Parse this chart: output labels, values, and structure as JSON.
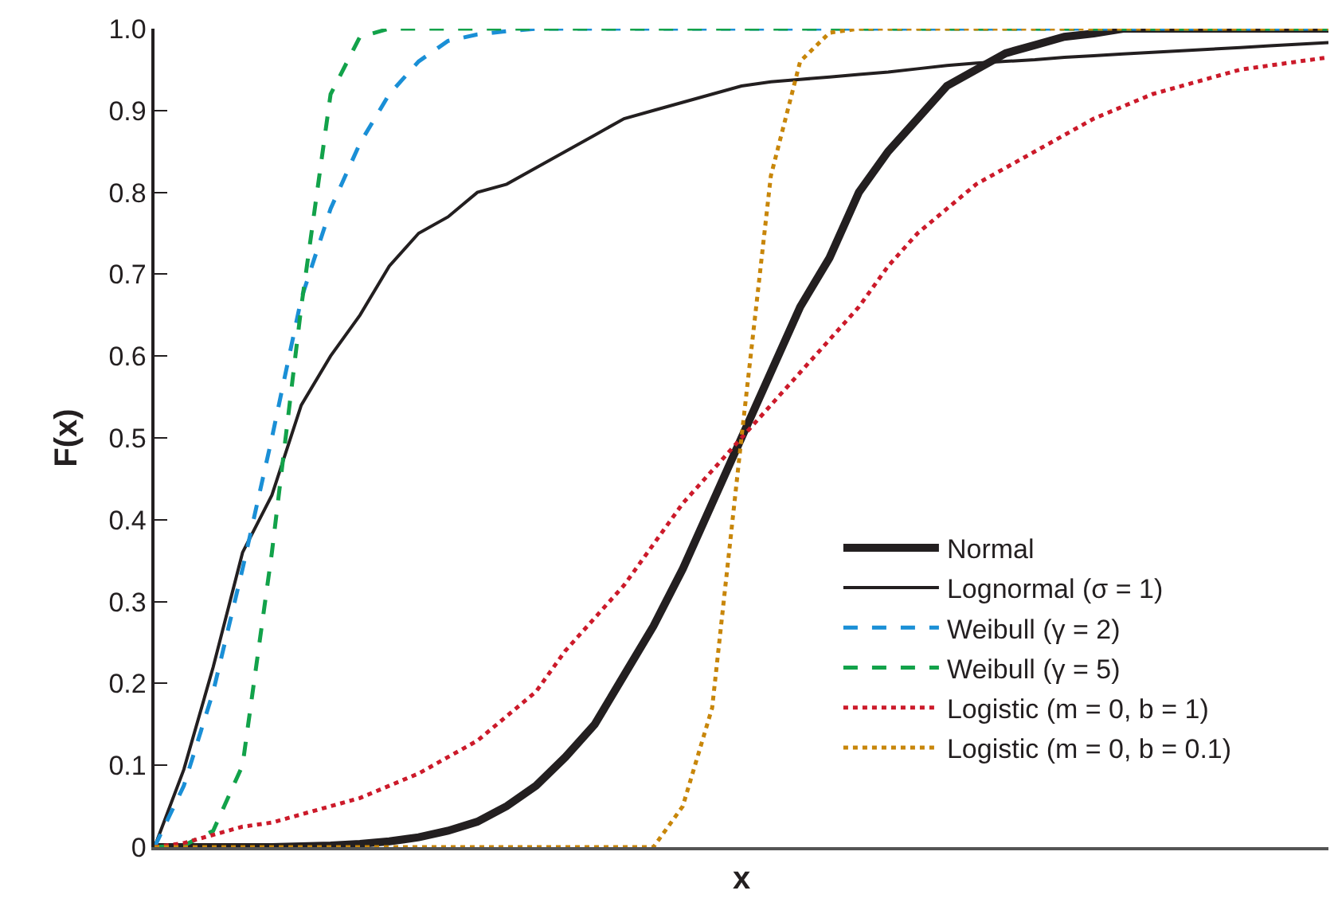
{
  "chart_data": {
    "type": "line",
    "xlabel": "x",
    "ylabel": "F(x)",
    "categories": [
      null,
      null,
      null,
      null,
      null,
      null,
      null,
      null,
      null,
      null,
      null,
      null,
      null,
      null,
      null,
      null,
      null,
      null,
      null,
      null,
      null,
      null,
      null,
      null,
      null,
      null,
      null,
      null,
      null,
      null,
      null,
      null,
      null,
      null,
      null,
      null,
      null,
      null,
      null,
      null,
      null
    ],
    "ylim": [
      0,
      1
    ],
    "yticks": [
      0,
      0.1,
      0.2,
      0.3,
      0.4,
      0.5,
      0.6,
      0.7,
      0.8,
      0.9,
      {
        "value": 1,
        "label": "1.0"
      }
    ],
    "tick_labels": "y",
    "legend": "bottom right",
    "marker": "none",
    "series": [
      {
        "name": "Normal",
        "color": "#231f20",
        "line_style": "solid",
        "values": [
          0,
          0,
          0,
          0,
          0,
          0.001,
          0.002,
          0.004,
          0.007,
          0.012,
          0.02,
          0.031,
          0.05,
          0.075,
          0.11,
          0.15,
          0.21,
          0.27,
          0.34,
          0.42,
          0.5,
          0.58,
          0.66,
          0.72,
          0.8,
          0.85,
          0.89,
          0.93,
          0.95,
          0.97,
          0.98,
          0.99,
          0.994,
          1,
          1,
          1,
          1,
          1,
          1,
          1,
          1
        ]
      },
      {
        "name": "Lognormal (σ = 1)",
        "color": "#231f20",
        "line_style": "solid",
        "values": [
          0,
          0.095,
          0.22,
          0.36,
          0.43,
          0.54,
          0.6,
          0.65,
          0.71,
          0.75,
          0.77,
          0.8,
          0.81,
          0.83,
          0.85,
          0.87,
          0.89,
          0.9,
          0.91,
          0.92,
          0.93,
          0.935,
          0.938,
          0.941,
          0.944,
          0.947,
          0.951,
          0.955,
          0.958,
          0.96,
          0.962,
          0.965,
          0.967,
          0.969,
          0.971,
          0.973,
          0.975,
          0.977,
          0.979,
          0.981,
          0.983
        ]
      },
      {
        "name": "Weibull (γ = 2)",
        "color": "#1a8fd6",
        "line_style": "dashed",
        "values": [
          0,
          0.075,
          0.19,
          0.34,
          0.5,
          0.67,
          0.78,
          0.86,
          0.92,
          0.96,
          0.985,
          0.993,
          0.997,
          1,
          1,
          1,
          1,
          1,
          1,
          1,
          1,
          1,
          1,
          1,
          1,
          1,
          1,
          1,
          1,
          1,
          1,
          1,
          1,
          1,
          1,
          1,
          1,
          1,
          1,
          1,
          1
        ]
      },
      {
        "name": "Weibull (γ = 5)",
        "color": "#12a24a",
        "line_style": "dashed",
        "values": [
          0,
          0.002,
          0.02,
          0.1,
          0.36,
          0.66,
          0.92,
          0.99,
          1,
          1,
          1,
          1,
          1,
          1,
          1,
          1,
          1,
          1,
          1,
          1,
          1,
          1,
          1,
          1,
          1,
          1,
          1,
          1,
          1,
          1,
          1,
          1,
          1,
          1,
          1,
          1,
          1,
          1,
          1,
          1,
          1
        ]
      },
      {
        "name": "Logistic (m = 0, b = 1)",
        "color": "#cc1a2a",
        "line_style": "dotted",
        "values": [
          0,
          0.005,
          0.015,
          0.025,
          0.03,
          0.04,
          0.05,
          0.06,
          0.075,
          0.09,
          0.11,
          0.13,
          0.16,
          0.19,
          0.24,
          0.28,
          0.32,
          0.37,
          0.42,
          0.46,
          0.5,
          0.54,
          0.58,
          0.62,
          0.66,
          0.71,
          0.75,
          0.78,
          0.81,
          0.83,
          0.85,
          0.87,
          0.89,
          0.905,
          0.92,
          0.93,
          0.94,
          0.95,
          0.955,
          0.96,
          0.965
        ]
      },
      {
        "name": "Logistic (m = 0, b = 0.1)",
        "color": "#c8860a",
        "line_style": "dotted",
        "values": [
          0,
          0,
          0,
          0,
          0,
          0,
          0,
          0,
          0,
          0,
          0,
          0,
          0,
          0,
          0,
          0,
          0,
          0,
          0.05,
          0.17,
          0.5,
          0.82,
          0.96,
          0.995,
          1,
          1,
          1,
          1,
          1,
          1,
          1,
          1,
          1,
          1,
          1,
          1,
          1,
          1,
          1,
          1,
          1
        ]
      }
    ]
  }
}
